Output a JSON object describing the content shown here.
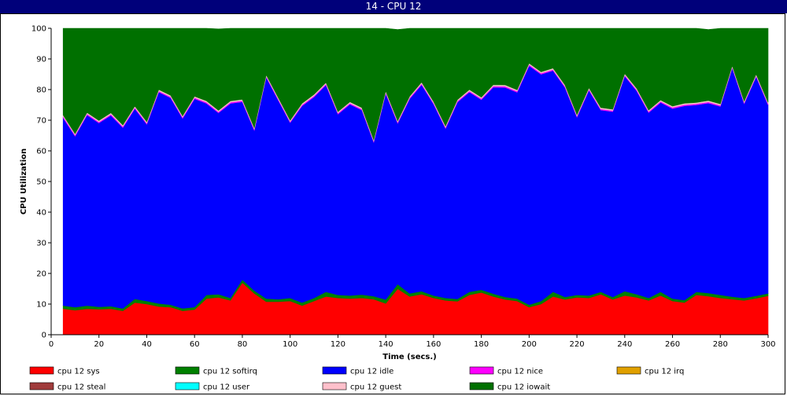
{
  "window": {
    "title": "14 - CPU 12"
  },
  "chart_data": {
    "type": "area",
    "stacked": true,
    "xlabel": "Time (secs.)",
    "ylabel": "CPU Utilization",
    "xlim": [
      0,
      300
    ],
    "ylim": [
      0,
      100
    ],
    "x_ticks": [
      0,
      20,
      40,
      60,
      80,
      100,
      120,
      140,
      160,
      180,
      200,
      220,
      240,
      260,
      280,
      300
    ],
    "y_ticks": [
      0,
      10,
      20,
      30,
      40,
      50,
      60,
      70,
      80,
      90,
      100
    ],
    "grid": false,
    "legend_position": "bottom",
    "x": [
      5,
      10,
      15,
      20,
      25,
      30,
      35,
      40,
      45,
      50,
      55,
      60,
      65,
      70,
      75,
      80,
      85,
      90,
      95,
      100,
      105,
      110,
      115,
      120,
      125,
      130,
      135,
      140,
      145,
      150,
      155,
      160,
      165,
      170,
      175,
      180,
      185,
      190,
      195,
      200,
      205,
      210,
      215,
      220,
      225,
      230,
      235,
      240,
      245,
      250,
      255,
      260,
      265,
      270,
      275,
      280,
      285,
      290,
      295,
      300
    ],
    "series": [
      {
        "name": "cpu 12 sys",
        "color": "#ff0000",
        "values": [
          8.5,
          8,
          8.5,
          8.3,
          8.5,
          7.8,
          10.5,
          10,
          9.2,
          9,
          7.8,
          8.2,
          11.8,
          12.2,
          11.2,
          17,
          13.5,
          10.8,
          10.8,
          11,
          9.5,
          11,
          12.5,
          12,
          11.8,
          12,
          11.6,
          10.2,
          15,
          12.5,
          13.2,
          12,
          11.2,
          10.9,
          13,
          13.8,
          12.5,
          11.5,
          11,
          9,
          10,
          12.5,
          11.5,
          12.2,
          12,
          13.2,
          11.5,
          12.8,
          12.2,
          11.2,
          12.8,
          11,
          10.5,
          13,
          12.6,
          12,
          11.6,
          11.2,
          11.9,
          12.7
        ]
      },
      {
        "name": "cpu 12 softirq",
        "color": "#008000",
        "values": [
          1,
          1,
          1,
          0.8,
          0.8,
          0.8,
          1.2,
          1,
          1,
          0.8,
          0.8,
          0.8,
          1.2,
          1,
          0.8,
          1,
          0.9,
          1,
          0.8,
          1,
          1,
          1,
          1.5,
          1,
          1,
          1.1,
          1,
          1.3,
          1.5,
          1,
          1,
          0.8,
          0.8,
          0.8,
          1,
          0.9,
          0.9,
          0.8,
          0.8,
          0.8,
          1,
          1.5,
          0.8,
          0.8,
          0.8,
          0.8,
          0.8,
          1.4,
          1,
          0.8,
          1.2,
          0.8,
          0.8,
          1,
          1,
          1,
          0.8,
          0.8,
          0.8,
          0.8
        ]
      },
      {
        "name": "cpu 12 idle",
        "color": "#0000ff",
        "values": [
          61.3,
          55.8,
          62.2,
          60,
          62.3,
          59,
          62.1,
          57.7,
          69,
          67.5,
          62,
          68,
          62.5,
          59.2,
          63.5,
          58,
          52.3,
          72.2,
          65,
          57.2,
          64.2,
          65.6,
          67.5,
          59,
          62.4,
          60.2,
          50.2,
          67.2,
          52.5,
          63.5,
          67.4,
          62.5,
          55.3,
          64.2,
          65.2,
          62,
          67.4,
          68.4,
          67.3,
          78,
          74,
          72.2,
          68.4,
          58,
          67,
          59.3,
          60.5,
          70.2,
          66.4,
          60.5,
          61.8,
          62,
          63.4,
          61,
          62,
          61.5,
          74.6,
          63.4,
          71.5,
          61.5
        ]
      },
      {
        "name": "cpu 12 nice",
        "color": "#ff00ff",
        "values": [
          0.5,
          0.4,
          0.4,
          0.4,
          0.4,
          0.4,
          0.4,
          0.4,
          0.4,
          0.4,
          0.4,
          0.4,
          0.4,
          0.4,
          0.4,
          0.4,
          0.4,
          0.4,
          0.4,
          0.4,
          0.4,
          0.4,
          0.4,
          0.4,
          0.4,
          0.4,
          0.4,
          0.4,
          0.4,
          0.4,
          0.4,
          0.4,
          0.4,
          0.4,
          0.4,
          0.4,
          0.4,
          0.4,
          0.4,
          0.4,
          0.4,
          0.4,
          0.4,
          0.4,
          0.4,
          0.4,
          0.4,
          0.4,
          0.4,
          0.4,
          0.4,
          0.4,
          0.4,
          0.4,
          0.4,
          0.4,
          0.4,
          0.4,
          0.4,
          0.4
        ]
      },
      {
        "name": "cpu 12 irq",
        "color": "#e0a000",
        "values": [
          0,
          0,
          0,
          0,
          0,
          0,
          0,
          0,
          0,
          0,
          0,
          0,
          0,
          0,
          0,
          0,
          0,
          0,
          0,
          0,
          0,
          0,
          0,
          0,
          0,
          0,
          0,
          0,
          0,
          0,
          0,
          0,
          0,
          0,
          0,
          0,
          0,
          0,
          0,
          0,
          0,
          0,
          0,
          0,
          0,
          0,
          0,
          0,
          0,
          0,
          0,
          0,
          0,
          0,
          0,
          0,
          0,
          0,
          0,
          0
        ]
      },
      {
        "name": "cpu 12 steal",
        "color": "#a03c3c",
        "values": [
          0,
          0,
          0,
          0,
          0,
          0,
          0,
          0,
          0,
          0,
          0,
          0,
          0,
          0,
          0,
          0,
          0,
          0,
          0,
          0,
          0,
          0,
          0,
          0,
          0,
          0,
          0,
          0,
          0,
          0,
          0,
          0,
          0,
          0,
          0,
          0,
          0,
          0,
          0,
          0,
          0,
          0,
          0,
          0,
          0,
          0,
          0,
          0,
          0,
          0,
          0,
          0,
          0,
          0,
          0,
          0,
          0,
          0,
          0,
          0
        ]
      },
      {
        "name": "cpu 12 user",
        "color": "#00ffff",
        "values": [
          0,
          0,
          0,
          0,
          0,
          0,
          0,
          0,
          0,
          0,
          0,
          0,
          0,
          0,
          0,
          0,
          0,
          0,
          0,
          0,
          0,
          0,
          0,
          0,
          0,
          0,
          0,
          0,
          0,
          0,
          0,
          0,
          0,
          0,
          0,
          0,
          0,
          0,
          0,
          0,
          0,
          0,
          0,
          0,
          0,
          0,
          0,
          0,
          0,
          0,
          0,
          0,
          0,
          0,
          0,
          0,
          0,
          0,
          0,
          0
        ]
      },
      {
        "name": "cpu 12 guest",
        "color": "#ffc0cb",
        "values": [
          0.4,
          0.4,
          0.4,
          0.4,
          0.4,
          0.4,
          0.4,
          0.4,
          0.4,
          0.4,
          0.4,
          0.4,
          0.4,
          0.4,
          0.4,
          0.4,
          0.4,
          0.4,
          0.4,
          0.4,
          0.4,
          0.4,
          0.4,
          0.4,
          0.4,
          0.4,
          0.4,
          0.4,
          0.4,
          0.4,
          0.4,
          0.4,
          0.4,
          0.4,
          0.4,
          0.4,
          0.4,
          0.4,
          0.4,
          0.4,
          0.4,
          0.4,
          0.4,
          0.4,
          0.4,
          0.4,
          0.4,
          0.4,
          0.4,
          0.4,
          0.4,
          0.4,
          0.4,
          0.4,
          0.4,
          0.4,
          0.4,
          0.4,
          0.4,
          0.4
        ]
      },
      {
        "name": "cpu 12 iowait",
        "color": "#007000",
        "values": [
          28.3,
          34.4,
          27.5,
          30.1,
          27.6,
          31.6,
          25.4,
          30.5,
          20,
          21.9,
          29,
          22.2,
          23.7,
          26.6,
          23.7,
          23.2,
          32.5,
          15.2,
          22.6,
          30,
          24.5,
          21.6,
          17.7,
          27.2,
          24,
          25.9,
          36.4,
          20.5,
          29.8,
          22.3,
          17.6,
          24.3,
          31.9,
          23.3,
          20,
          22.5,
          18.4,
          18.5,
          20.1,
          11.4,
          14.2,
          13,
          18.5,
          28.2,
          19.4,
          25.9,
          26.4,
          14.8,
          19.6,
          26.7,
          23.4,
          25.4,
          24.5,
          24.2,
          23.2,
          24.7,
          12.2,
          23.8,
          15,
          24.2
        ]
      }
    ]
  }
}
